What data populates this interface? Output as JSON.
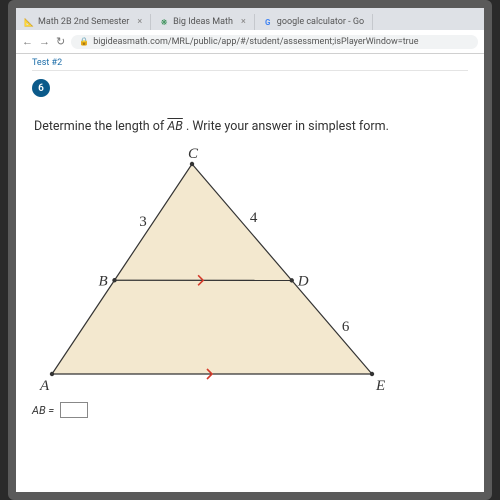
{
  "browser": {
    "tabs": [
      {
        "favicon": "📐",
        "favicon_color": "#c0392b",
        "label": "Math 2B 2nd Semester"
      },
      {
        "favicon": "❋",
        "favicon_color": "#2e8b4e",
        "label": "Big Ideas Math"
      },
      {
        "favicon": "G",
        "favicon_color": "#4285f4",
        "label": "google calculator - Go"
      }
    ],
    "back_icon": "←",
    "fwd_icon": "→",
    "reload_icon": "↻",
    "lock_icon": "🔒",
    "url": "bigideasmath.com/MRL/public/app/#/student/assessment;isPlayerWindow=true"
  },
  "breadcrumb": "Test #2",
  "question_number": "6",
  "prompt_pre": "Determine the length of ",
  "prompt_seg": "AB",
  "prompt_post": " . Write your answer in simplest form.",
  "answer_label": "AB =",
  "diagram": {
    "type": "triangle-midsegment",
    "colors": {
      "fill": "#f3e8cf",
      "stroke": "#333333",
      "label": "#333333",
      "tick": "#d43a2a",
      "bg": "#ffffff"
    },
    "outer_points": {
      "A": [
        20,
        230
      ],
      "C": [
        160,
        20
      ],
      "E": [
        340,
        230
      ]
    },
    "inner_points": {
      "B": [
        82.5,
        136.25
      ],
      "D": [
        259.75,
        136.375
      ]
    },
    "labels": {
      "A": "A",
      "B": "B",
      "C": "C",
      "D": "D",
      "E": "E",
      "CB": "3",
      "CD": "4",
      "DE": "6"
    },
    "label_fontsize": 15,
    "stroke_width": 1.2,
    "tick_len": 5
  }
}
